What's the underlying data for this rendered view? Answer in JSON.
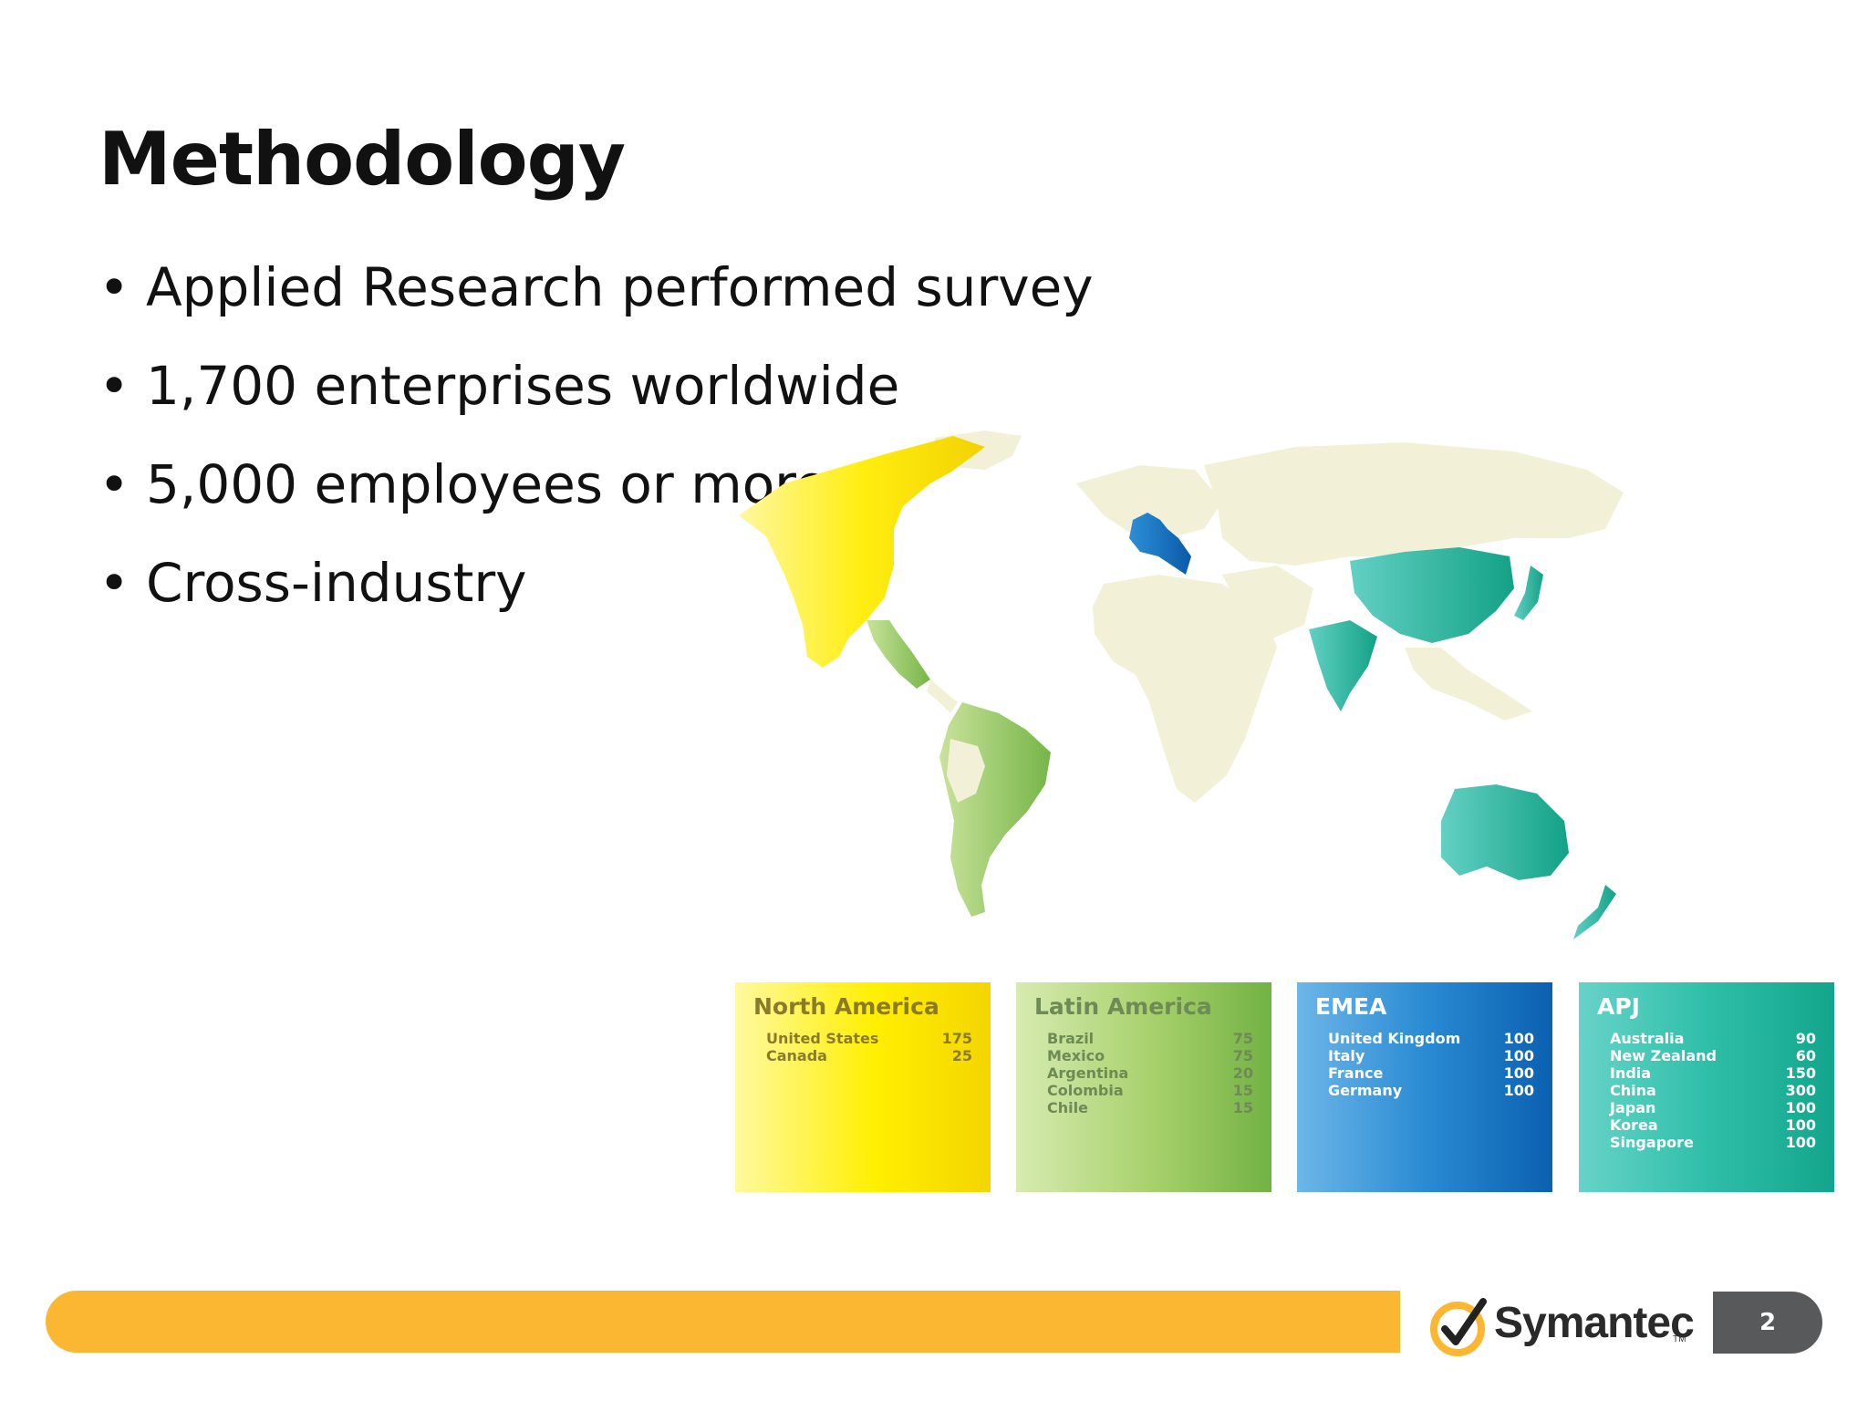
{
  "slide": {
    "title": "Methodology",
    "bullets": [
      "Applied Research performed survey",
      "1,700 enterprises worldwide",
      "5,000 employees or more",
      "Cross-industry"
    ],
    "page_number": "2"
  },
  "map": {
    "regions": [
      {
        "name": "North America",
        "color": "#f5d80a",
        "rows": [
          {
            "country": "United States",
            "count": "175"
          },
          {
            "country": "Canada",
            "count": "25"
          }
        ]
      },
      {
        "name": "Latin America",
        "color": "#8cc152",
        "rows": [
          {
            "country": "Brazil",
            "count": "75"
          },
          {
            "country": "Mexico",
            "count": "75"
          },
          {
            "country": "Argentina",
            "count": "20"
          },
          {
            "country": "Colombia",
            "count": "15"
          },
          {
            "country": "Chile",
            "count": "15"
          }
        ]
      },
      {
        "name": "EMEA",
        "color": "#1a6fc0",
        "rows": [
          {
            "country": "United Kingdom",
            "count": "100"
          },
          {
            "country": "Italy",
            "count": "100"
          },
          {
            "country": "France",
            "count": "100"
          },
          {
            "country": "Germany",
            "count": "100"
          }
        ]
      },
      {
        "name": "APJ",
        "color": "#1fb09a",
        "rows": [
          {
            "country": "Australia",
            "count": "90"
          },
          {
            "country": "New Zealand",
            "count": "60"
          },
          {
            "country": "India",
            "count": "150"
          },
          {
            "country": "China",
            "count": "300"
          },
          {
            "country": "Japan",
            "count": "100"
          },
          {
            "country": "Korea",
            "count": "100"
          },
          {
            "country": "Singapore",
            "count": "100"
          }
        ]
      }
    ],
    "land_color": "#f3f0d8"
  },
  "footer": {
    "brand": "Symantec",
    "trademark": "TM",
    "bar_color": "#fbb731",
    "page_tab_color": "#58595b"
  }
}
